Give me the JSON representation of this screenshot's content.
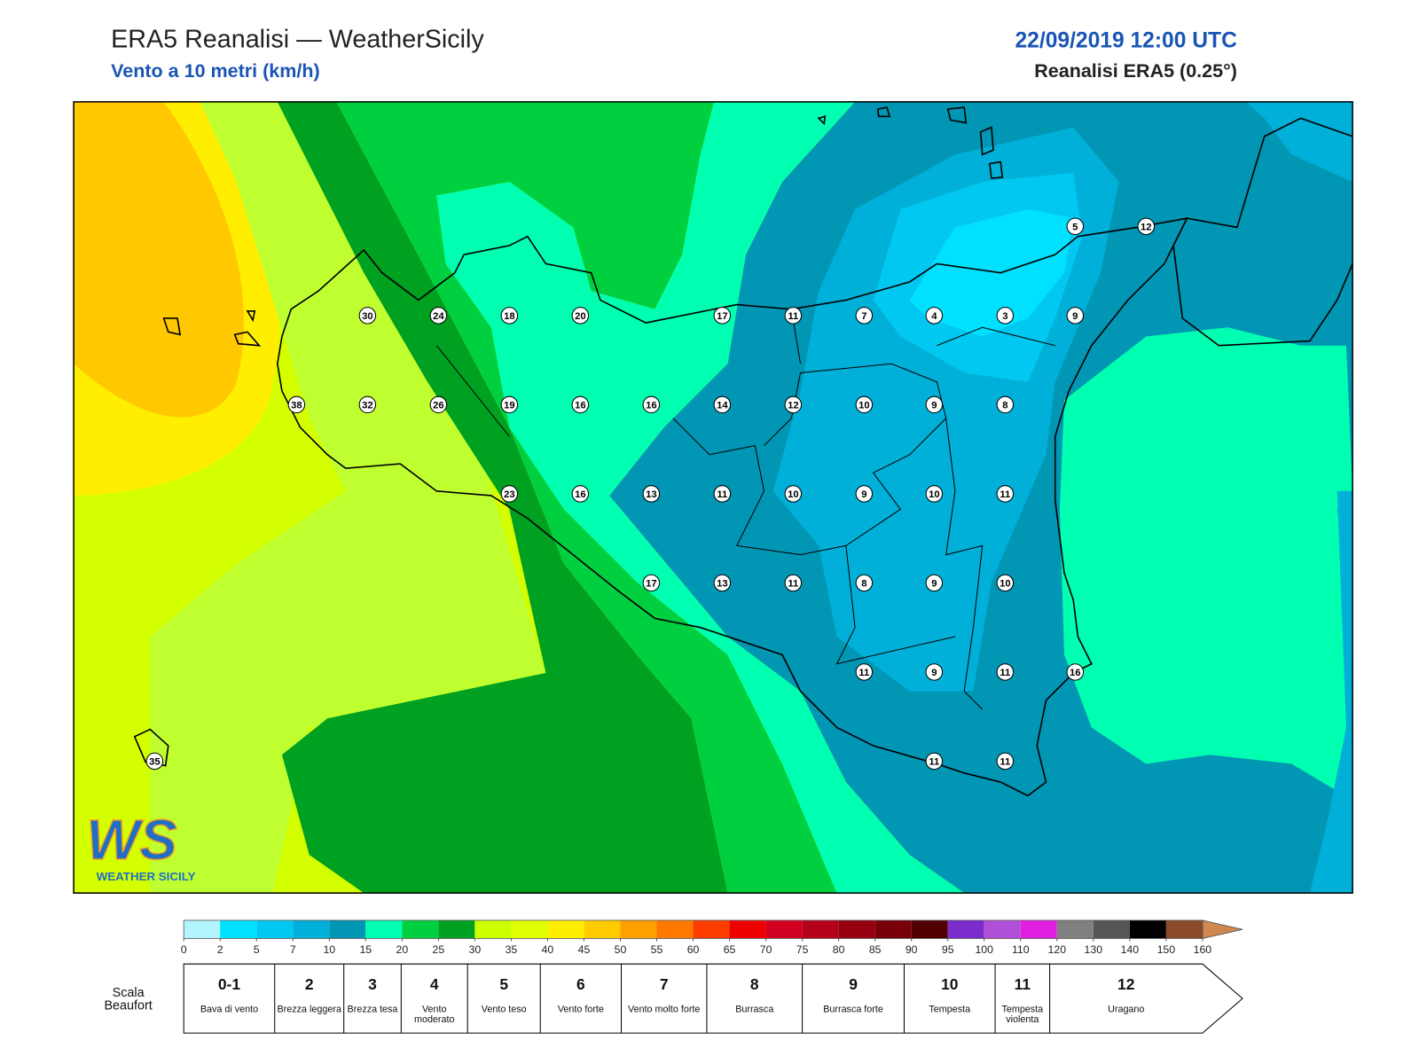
{
  "header": {
    "title": "ERA5 Reanalisi — WeatherSicily",
    "subtitle": "Vento a 10 metri (km/h)",
    "date": "22/09/2019 12:00 UTC",
    "model": "Reanalisi ERA5 (0.25°)"
  },
  "stations": {
    "values": [
      5,
      12,
      30,
      24,
      18,
      20,
      17,
      11,
      7,
      4,
      3,
      9,
      38,
      32,
      26,
      19,
      16,
      16,
      14,
      12,
      10,
      9,
      8,
      23,
      16,
      13,
      11,
      10,
      9,
      10,
      11,
      17,
      13,
      11,
      8,
      9,
      10,
      11,
      9,
      11,
      16,
      35,
      11,
      11
    ]
  },
  "colorbar": {
    "ticks": [
      0,
      2,
      5,
      7,
      10,
      15,
      20,
      25,
      30,
      35,
      40,
      45,
      50,
      55,
      60,
      65,
      70,
      75,
      80,
      85,
      90,
      95,
      100,
      110,
      120,
      130,
      140,
      150,
      160
    ],
    "colors": [
      "#b3f5ff",
      "#00e0ff",
      "#00c8f0",
      "#00b0d8",
      "#0096b4",
      "#00ffb0",
      "#00d040",
      "#00a020",
      "#ccff00",
      "#e0ff00",
      "#ffee00",
      "#ffcc00",
      "#ffa000",
      "#ff7800",
      "#ff3c00",
      "#ee0000",
      "#d20020",
      "#b40018",
      "#960010",
      "#780008",
      "#500000",
      "#7a2ccc",
      "#b050d8",
      "#e020e0",
      "#808080",
      "#555555",
      "#000000",
      "#8b4a2a"
    ],
    "extend_color": "#d08850"
  },
  "beaufort": {
    "title": "Scala Beaufort",
    "levels": [
      {
        "force": "0-1",
        "label": "Bava di vento"
      },
      {
        "force": "2",
        "label": "Brezza leggera"
      },
      {
        "force": "3",
        "label": "Brezza tesa"
      },
      {
        "force": "4",
        "label": "Vento moderato"
      },
      {
        "force": "5",
        "label": "Vento teso"
      },
      {
        "force": "6",
        "label": "Vento forte"
      },
      {
        "force": "7",
        "label": "Vento molto forte"
      },
      {
        "force": "8",
        "label": "Burrasca"
      },
      {
        "force": "9",
        "label": "Burrasca forte"
      },
      {
        "force": "10",
        "label": "Tempesta"
      },
      {
        "force": "11",
        "label": "Tempesta violenta"
      },
      {
        "force": "12",
        "label": "Uragano"
      }
    ]
  },
  "logo": {
    "text": "WS",
    "caption": "WEATHER SICILY"
  }
}
